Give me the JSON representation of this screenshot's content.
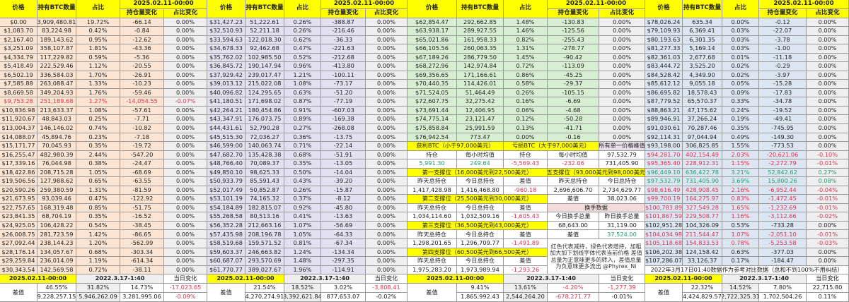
{
  "colors": {
    "header": "#ffff00",
    "block1": "#fbe4d2",
    "block2": "#e3e1f1",
    "block3": "#d8eed3",
    "block4": "#dce6f2",
    "loss": "#e0314f",
    "gain": "#1e9e6a"
  },
  "headers": {
    "price": "价格",
    "qty": "持有BTC数量",
    "pct": "占比",
    "date": "2025.02.11-00:00",
    "chg": "持仓量变化",
    "pct_chg": "占比变化"
  },
  "footer_labels": {
    "date_now": "2025.02.11-00:00",
    "date_ref": "2022.3.17-1:40",
    "daily": "当日变化",
    "diff": "差值"
  },
  "blocks": [
    {
      "rows": [
        [
          "$0.00",
          "3,909,480.81",
          "19.72%",
          "-66.14",
          "0.00%",
          ""
        ],
        [
          "$1,083.70",
          "83,224.98",
          "0.42%",
          "-0.84",
          "0.00%",
          ""
        ],
        [
          "$2,167.40",
          "189,143.62",
          "0.95%",
          "-12.62",
          "0.00%",
          ""
        ],
        [
          "$3,251.09",
          "358,107.87",
          "1.81%",
          "-43.36",
          "0.00%",
          ""
        ],
        [
          "$4,334.79",
          "117,229.82",
          "0.59%",
          "-5.36",
          "0.00%",
          ""
        ],
        [
          "$5,418.49",
          "222,529.46",
          "1.12%",
          "-20.55",
          "0.00%",
          ""
        ],
        [
          "$6,502.19",
          "336,584.03",
          "1.70%",
          "-26.91",
          "0.00%",
          ""
        ],
        [
          "$7,585.88",
          "263,088.47",
          "1.33%",
          "-10.23",
          "0.00%",
          ""
        ],
        [
          "$8,669.58",
          "349,204.93",
          "1.76%",
          "-59.46",
          "0.00%",
          ""
        ],
        [
          "$9,753.28",
          "251,189.68",
          "1.27%",
          "-14,054.55",
          "-0.07%",
          "red"
        ],
        [
          "$10,836.98",
          "213,633.37",
          "1.08%",
          "-57.61",
          "0.00%",
          ""
        ],
        [
          "$11,920.67",
          "48,843.03",
          "0.25%",
          "-7.71",
          "0.00%",
          ""
        ],
        [
          "$13,004.37",
          "146,146.02",
          "0.74%",
          "-10.82",
          "0.00%",
          ""
        ],
        [
          "$14,088.07",
          "45,894.76",
          "0.23%",
          "-7.18",
          "0.00%",
          ""
        ],
        [
          "$15,171.77",
          "70,045.93",
          "0.35%",
          "-19.72",
          "0.00%",
          ""
        ],
        [
          "$16,255.47",
          "482,980.39",
          "2.44%",
          "-547.20",
          "0.00%",
          ""
        ],
        [
          "$17,339.16",
          "76,044.98",
          "0.38%",
          "-24.47",
          "0.00%",
          ""
        ],
        [
          "$18,422.86",
          "208,715.28",
          "1.05%",
          "-68.69",
          "0.00%",
          ""
        ],
        [
          "$19,506.56",
          "127,988.62",
          "0.65%",
          "-63.55",
          "0.00%",
          ""
        ],
        [
          "$20,590.26",
          "259,380.59",
          "1.31%",
          "-81.59",
          "0.00%",
          ""
        ],
        [
          "$21,673.95",
          "93,039.46",
          "0.47%",
          "-122.92",
          "0.00%",
          ""
        ],
        [
          "$22,757.65",
          "168,319.48",
          "0.85%",
          "-51.75",
          "0.00%",
          ""
        ],
        [
          "$23,841.35",
          "68,704.19",
          "0.35%",
          "-16.52",
          "0.00%",
          ""
        ],
        [
          "$24,925.05",
          "106,428.22",
          "0.54%",
          "-38.45",
          "0.00%",
          ""
        ],
        [
          "$26,008.75",
          "281,723.59",
          "1.42%",
          "-86.65",
          "0.00%",
          ""
        ],
        [
          "$27,092.44",
          "238,144.23",
          "1.20%",
          "-562.99",
          "0.00%",
          ""
        ],
        [
          "$28,176.14",
          "134,057.67",
          "0.68%",
          "-303.34",
          "0.00%",
          ""
        ],
        [
          "$29,259.84",
          "236,014.09",
          "1.19%",
          "-614.34",
          "0.00%",
          ""
        ],
        [
          "$30,343.54",
          "142,569.58",
          "0.72%",
          "-38.11",
          "0.00%",
          ""
        ]
      ],
      "footer": {
        "pct_now": "46.55%",
        "pct_ref": "31.82%",
        "pct_diff": "14.73%",
        "daily_amt": "-17,023.65",
        "qty_now": "9,228,257.15",
        "qty_ref": "5,946,262.09",
        "qty_diff": "3,281,995.06",
        "daily_pct": "-0.09%"
      }
    },
    {
      "rows": [
        [
          "$31,427.23",
          "51,222.61",
          "0.26%",
          "-388.87",
          "0.00%",
          ""
        ],
        [
          "$32,510.93",
          "52,211.18",
          "0.26%",
          "-216.46",
          "0.00%",
          ""
        ],
        [
          "$33,594.63",
          "122,018.30",
          "0.62%",
          "-36.33",
          "0.00%",
          ""
        ],
        [
          "$34,678.33",
          "92,462.68",
          "0.47%",
          "-221.63",
          "0.00%",
          ""
        ],
        [
          "$35,762.02",
          "102,985.50",
          "0.52%",
          "-212.68",
          "0.00%",
          ""
        ],
        [
          "$36,845.72",
          "190,147.94",
          "0.96%",
          "-413.80",
          "0.00%",
          ""
        ],
        [
          "$37,929.42",
          "239,017.47",
          "1.21%",
          "-100.11",
          "0.00%",
          ""
        ],
        [
          "$39,013.12",
          "215,022.08",
          "1.08%",
          "-73.17",
          "0.00%",
          ""
        ],
        [
          "$40,096.82",
          "124,295.65",
          "0.63%",
          "-51.20",
          "0.00%",
          ""
        ],
        [
          "$41,180.51",
          "171,698.02",
          "0.87%",
          "-77.19",
          "0.00%",
          ""
        ],
        [
          "$42,264.21",
          "180,454.86",
          "0.91%",
          "-607.03",
          "0.00%",
          ""
        ],
        [
          "$43,347.91",
          "176,073.75",
          "0.89%",
          "-169.38",
          "0.00%",
          ""
        ],
        [
          "$44,431.61",
          "52,790.28",
          "0.27%",
          "-268.08",
          "0.00%",
          ""
        ],
        [
          "$45,515.30",
          "72,036.27",
          "0.36%",
          "-13.75",
          "0.00%",
          ""
        ],
        [
          "$46,599.00",
          "140,063.74",
          "0.71%",
          "-22.14",
          "0.00%",
          ""
        ],
        [
          "$47,682.70",
          "135,428.38",
          "0.68%",
          "-51.91",
          "0.00%",
          ""
        ],
        [
          "$48,766.40",
          "70,089.37",
          "0.35%",
          "-13.05",
          "0.00%",
          ""
        ],
        [
          "$49,850.10",
          "98,625.33",
          "0.50%",
          "-14.04",
          "0.00%",
          ""
        ],
        [
          "$50,933.79",
          "85,591.43",
          "0.43%",
          "-39.20",
          "0.00%",
          ""
        ],
        [
          "$52,017.49",
          "50,852.87",
          "0.26%",
          "-15.87",
          "0.00%",
          ""
        ],
        [
          "$53,101.19",
          "74,165.32",
          "0.37%",
          "-8.12",
          "0.00%",
          ""
        ],
        [
          "$54,184.89",
          "182,815.07",
          "0.92%",
          "-45.80",
          "0.00%",
          ""
        ],
        [
          "$55,268.58",
          "80,513.16",
          "0.41%",
          "-13.63",
          "0.00%",
          ""
        ],
        [
          "$56,352.28",
          "212,663.16",
          "1.07%",
          "-56.69",
          "0.00%",
          ""
        ],
        [
          "$57,435.98",
          "208,196.78",
          "1.05%",
          "-64.33",
          "0.00%",
          ""
        ],
        [
          "$58,519.68",
          "159,571.52",
          "0.81%",
          "-67.34",
          "0.00%",
          ""
        ],
        [
          "$59,603.37",
          "246,663.82",
          "1.24%",
          "-134.34",
          "0.00%",
          ""
        ],
        [
          "$60,687.07",
          "293,570.69",
          "1.48%",
          "-297.35",
          "0.00%",
          ""
        ],
        [
          "$61,770.77",
          "389,027.67",
          "1.96%",
          "-114.91",
          "0.00%",
          ""
        ]
      ],
      "footer": {
        "pct_now": "21.54%",
        "pct_ref": "18.52%",
        "pct_diff": "3.02%",
        "daily_amt": "-3,808.41",
        "qty_now": "4,270,274.91",
        "qty_ref": "3,392,621.84",
        "qty_diff": "877,653.07",
        "daily_pct": "-0.02%"
      }
    },
    {
      "rows": [
        [
          "$62,854.47",
          "292,662.85",
          "1.48%",
          "-130.83",
          "0.00%",
          ""
        ],
        [
          "$63,938.17",
          "289,927.55",
          "1.46%",
          "-125.56",
          "0.00%",
          ""
        ],
        [
          "$65,021.86",
          "161,958.33",
          "0.82%",
          "-255.43",
          "0.00%",
          ""
        ],
        [
          "$66,105.56",
          "260,063.35",
          "1.31%",
          "-278.77",
          "0.00%",
          ""
        ],
        [
          "$67,189.26",
          "286,779.50",
          "1.45%",
          "-90.42",
          "0.00%",
          ""
        ],
        [
          "$68,272.96",
          "142,974.84",
          "0.72%",
          "-113.09",
          "0.00%",
          ""
        ],
        [
          "$69,356.65",
          "171,166.61",
          "0.86%",
          "-45.25",
          "0.00%",
          ""
        ],
        [
          "$70,440.35",
          "114,426.01",
          "0.58%",
          "-29.37",
          "0.00%",
          ""
        ],
        [
          "$71,524.05",
          "51,464.49",
          "0.26%",
          "-105.15",
          "0.00%",
          ""
        ],
        [
          "$72,607.75",
          "32,275.42",
          "0.16%",
          "-6.69",
          "0.00%",
          ""
        ],
        [
          "$73,691.44",
          "12,406.95",
          "0.06%",
          "-4.68",
          "0.00%",
          ""
        ],
        [
          "$74,775.14",
          "23,121.47",
          "0.12%",
          "-50.28",
          "0.00%",
          ""
        ],
        [
          "$75,858.84",
          "25,991.59",
          "0.13%",
          "-41.71",
          "0.00%",
          ""
        ],
        [
          "$76,942.54",
          "773.47",
          "0.00%",
          "-0.16",
          "0.00%",
          ""
        ]
      ],
      "summary": {
        "profit_label": "获利BTC（小于97,000美元）",
        "loss_label": "亏损BTC（大于97,000美元）",
        "peak_label": "所有单一价格峰值",
        "holding": "持仓",
        "hourly_avg": "每小时均值",
        "profit_holding": "5,991.30",
        "profit_hourly": "249.64",
        "loss_holding": "-5,569.43",
        "loss_hourly": "-232.06",
        "peak_price": "97,532.79",
        "peak_qty": "731,405.90",
        "yesterday_total": "昨天总持仓",
        "today_total": "今日总持仓",
        "diff": "差值",
        "supports": [
          {
            "title": "第一支撑位（16,000美元到22,500美元）",
            "yesterday": "1,417,428.98",
            "today": "1,416,468.80",
            "diff": "-960.18"
          },
          {
            "title": "第二支撑位（25,500美元到30,000美元）",
            "yesterday": "1,034,114.60",
            "today": "1,032,509.16",
            "diff": "-1,605.43"
          },
          {
            "title": "第三支撑位（36,500美元到43,000美元）",
            "yesterday": "1,298,201.65",
            "today": "1,296,709.77",
            "diff": "-1,491.89"
          },
          {
            "title": "第四支撑位（60,500美元到66,500美元）",
            "yesterday": "1,975,283.20",
            "today": "1,973,989.94",
            "diff": "-1,293.26"
          },
          {
            "title": "第五支撑位（93,000美元到98,000美元）",
            "yesterday": "2,696,606.70",
            "today": "2,734,629.77",
            "diff": "38,023.06"
          }
        ],
        "turnover": {
          "title": "换手数据",
          "today_label": "今日换手总量",
          "yesterday_label": "昨日换手总量",
          "today": "68,643.00",
          "yesterday": "31,119.00",
          "diff_label": "差值",
          "diff": "37,524.00"
        },
        "note": "红色代表减持，绿色代表增持，加粗加大加下划线字体代表当前价格 差值总量为正意味更多的转入，差值总量为负意味更多流出 @Phyrex_Ni"
      },
      "footer": {
        "pct_now": "9.41%",
        "pct_ref": "13.61%",
        "pct_diff": "-4.20%",
        "daily_amt": "-1,277.39",
        "qty_now": "1,865,992.43",
        "qty_ref": "2,544,264.20",
        "qty_diff": "-678,271.77",
        "daily_pct": "-0.01%"
      }
    },
    {
      "rows": [
        [
          "$78,026.24",
          "635.34",
          "0.00%",
          "-0.12",
          "0.00%",
          ""
        ],
        [
          "$79,109.93",
          "6,369.41",
          "0.03%",
          "-22.07",
          "0.00%",
          ""
        ],
        [
          "$80,193.63",
          "6,301.35",
          "0.03%",
          "-3.78",
          "0.00%",
          ""
        ],
        [
          "$81,277.33",
          "5,169.14",
          "0.03%",
          "-1.00",
          "0.00%",
          ""
        ],
        [
          "$82,361.03",
          "2,677.68",
          "0.01%",
          "-11.18",
          "0.00%",
          ""
        ],
        [
          "$83,444.72",
          "3,525.20",
          "0.02%",
          "-0.29",
          "0.00%",
          ""
        ],
        [
          "$84,528.42",
          "4,349.90",
          "0.02%",
          "-3.97",
          "0.00%",
          ""
        ],
        [
          "$85,612.12",
          "9,055.18",
          "0.05%",
          "-15.28",
          "0.00%",
          ""
        ],
        [
          "$86,695.82",
          "18,578.43",
          "0.09%",
          "-17.83",
          "0.00%",
          ""
        ],
        [
          "$87,779.52",
          "65,570.37",
          "0.33%",
          "-34.78",
          "0.00%",
          ""
        ],
        [
          "$88,863.21",
          "47,175.62",
          "0.24%",
          "-19.52",
          "0.00%",
          ""
        ],
        [
          "$89,946.91",
          "37,266.24",
          "0.19%",
          "-49.41",
          "0.00%",
          ""
        ],
        [
          "$91,030.61",
          "70,287.46",
          "0.35%",
          "-745.95",
          "0.00%",
          ""
        ],
        [
          "$92,114.31",
          "97,044.94",
          "0.49%",
          "-149.30",
          "0.00%",
          ""
        ],
        [
          "$93,198.00",
          "306,825.85",
          "1.55%",
          "-773.53",
          "0.00%",
          ""
        ],
        [
          "$94,281.70",
          "402,154.49",
          "2.03%",
          "-20,621.06",
          "-0.10%",
          "red"
        ],
        [
          "$95,365.40",
          "228,912.31",
          "1.15%",
          "-2,272.79",
          "-0.01%",
          "red"
        ],
        [
          "$96,449.10",
          "636,422.78",
          "3.21%",
          "52,842.62",
          "0.27%",
          "green"
        ],
        [
          "$97,532.79",
          "731,405.90",
          "3.69%",
          "15,800.26",
          "0.08%",
          "green"
        ],
        [
          "$98,616.49",
          "428,908.45",
          "2.16%",
          "-6,952.44",
          "-0.04%",
          "red"
        ],
        [
          "$99,700.19",
          "164,275.97",
          "0.83%",
          "-1,472.45",
          "-0.01%",
          "red"
        ],
        [
          "$100,783.89",
          "327,549.28",
          "1.65%",
          "-1,232.69",
          "-0.01%",
          "red"
        ],
        [
          "$101,867.59",
          "229,508.77",
          "1.16%",
          "-3,112.66",
          "-0.02%",
          "red"
        ],
        [
          "$102,951.28",
          "104,326.09",
          "0.53%",
          "-733.28",
          "0.00%",
          ""
        ],
        [
          "$104,034.98",
          "211,544.47",
          "1.07%",
          "-2,051.10",
          "-0.01%",
          "red"
        ],
        [
          "$105,118.68",
          "154,833.53",
          "0.78%",
          "-5,253.58",
          "-0.03%",
          "red"
        ],
        [
          "$106,202.38",
          "124,158.42",
          "0.63%",
          "-377.03",
          "0.00%",
          ""
        ],
        [
          "$107,286.07",
          "33,126.37",
          "0.17%",
          "-184.47",
          "0.00%",
          ""
        ]
      ],
      "note": "2022年3月17日01:40数据作为参考对比数据（总和不到100%不用纠结）",
      "footer": {
        "pct_now": "22.32%",
        "pct_ref": "14.52%",
        "pct_diff": "7.80%",
        "daily_amt": "22,715.80",
        "qty_now": "4,424,829.57",
        "qty_ref": "2,722,325.31",
        "qty_diff": "1,702,504.26",
        "daily_pct": "0.11%"
      }
    }
  ]
}
